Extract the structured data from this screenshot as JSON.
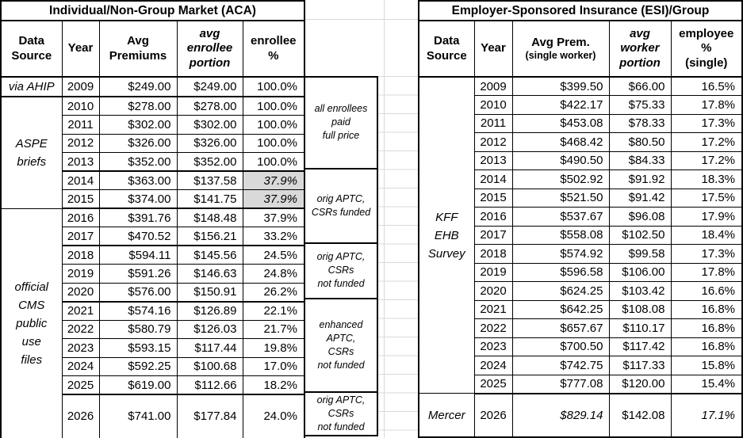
{
  "colors": {
    "background": "#ffffff",
    "text": "#000000",
    "border": "#000000",
    "shaded_cell": "#d9d9d9",
    "gridline": "#d9d9d9"
  },
  "left_table": {
    "title": "Individual/Non-Group Market (ACA)",
    "headers": {
      "data_source": "Data\nSource",
      "year": "Year",
      "premiums": "Avg\nPremiums",
      "portion": "avg\nenrollee\nportion",
      "pct": "enrollee\n%"
    },
    "sources": {
      "ahip": "via AHIP",
      "aspe": "ASPE\nbriefs",
      "cms": "official\nCMS\npublic\nuse\nfiles"
    },
    "rows": [
      {
        "year": "2009",
        "prem": "$249.00",
        "portion": "$249.00",
        "pct": "100.0%",
        "src": "ahip",
        "span": 1,
        "thick_bottom": true
      },
      {
        "year": "2010",
        "prem": "$278.00",
        "portion": "$278.00",
        "pct": "100.0%",
        "src": "aspe",
        "span": 6
      },
      {
        "year": "2011",
        "prem": "$302.00",
        "portion": "$302.00",
        "pct": "100.0%"
      },
      {
        "year": "2012",
        "prem": "$326.00",
        "portion": "$326.00",
        "pct": "100.0%"
      },
      {
        "year": "2013",
        "prem": "$352.00",
        "portion": "$352.00",
        "pct": "100.0%",
        "thick_bottom": true
      },
      {
        "year": "2014",
        "prem": "$363.00",
        "portion": "$137.58",
        "pct": "37.9%",
        "pct_shaded": true,
        "pct_italic": true
      },
      {
        "year": "2015",
        "prem": "$374.00",
        "portion": "$141.75",
        "pct": "37.9%",
        "pct_shaded": true,
        "pct_italic": true,
        "thick_bottom": true
      },
      {
        "year": "2016",
        "prem": "$391.76",
        "portion": "$148.48",
        "pct": "37.9%",
        "src": "cms",
        "span": 11
      },
      {
        "year": "2017",
        "prem": "$470.52",
        "portion": "$156.21",
        "pct": "33.2%",
        "thick_bottom": true
      },
      {
        "year": "2018",
        "prem": "$594.11",
        "portion": "$145.56",
        "pct": "24.5%"
      },
      {
        "year": "2019",
        "prem": "$591.26",
        "portion": "$146.63",
        "pct": "24.8%"
      },
      {
        "year": "2020",
        "prem": "$576.00",
        "portion": "$150.91",
        "pct": "26.2%",
        "thick_bottom": true
      },
      {
        "year": "2021",
        "prem": "$574.16",
        "portion": "$126.89",
        "pct": "22.1%"
      },
      {
        "year": "2022",
        "prem": "$580.79",
        "portion": "$126.03",
        "pct": "21.7%"
      },
      {
        "year": "2023",
        "prem": "$593.15",
        "portion": "$117.44",
        "pct": "19.8%"
      },
      {
        "year": "2024",
        "prem": "$592.25",
        "portion": "$100.68",
        "pct": "17.0%"
      },
      {
        "year": "2025",
        "prem": "$619.00",
        "portion": "$112.66",
        "pct": "18.2%",
        "thick_bottom": true
      },
      {
        "year": "2026",
        "prem": "$741.00",
        "portion": "$177.84",
        "pct": "24.0%",
        "tall": true
      }
    ]
  },
  "notes": [
    {
      "label": "all enrollees\npaid\nfull price"
    },
    {
      "label": "orig APTC,\nCSRs funded"
    },
    {
      "label": "orig APTC,\nCSRs\nnot funded"
    },
    {
      "label": "enhanced\nAPTC,\nCSRs\nnot funded"
    },
    {
      "label": "orig APTC,\nCSRs\nnot funded"
    }
  ],
  "right_table": {
    "title": "Employer-Sponsored Insurance (ESI)/Group",
    "headers": {
      "data_source": "Data\nSource",
      "year": "Year",
      "prem_main": "Avg Prem.",
      "prem_sub": "(single worker)",
      "portion": "avg\nworker\nportion",
      "pct": "employee\n%\n(single)"
    },
    "sources": {
      "kff": "KFF\nEHB\nSurvey",
      "mercer": "Mercer"
    },
    "rows": [
      {
        "year": "2009",
        "prem": "$399.50",
        "portion": "$66.00",
        "pct": "16.5%",
        "src": "kff",
        "span": 17
      },
      {
        "year": "2010",
        "prem": "$422.17",
        "portion": "$75.33",
        "pct": "17.8%"
      },
      {
        "year": "2011",
        "prem": "$453.08",
        "portion": "$78.33",
        "pct": "17.3%"
      },
      {
        "year": "2012",
        "prem": "$468.42",
        "portion": "$80.50",
        "pct": "17.2%"
      },
      {
        "year": "2013",
        "prem": "$490.50",
        "portion": "$84.33",
        "pct": "17.2%"
      },
      {
        "year": "2014",
        "prem": "$502.92",
        "portion": "$91.92",
        "pct": "18.3%"
      },
      {
        "year": "2015",
        "prem": "$521.50",
        "portion": "$91.42",
        "pct": "17.5%"
      },
      {
        "year": "2016",
        "prem": "$537.67",
        "portion": "$96.08",
        "pct": "17.9%"
      },
      {
        "year": "2017",
        "prem": "$558.08",
        "portion": "$102.50",
        "pct": "18.4%"
      },
      {
        "year": "2018",
        "prem": "$574.92",
        "portion": "$99.58",
        "pct": "17.3%"
      },
      {
        "year": "2019",
        "prem": "$596.58",
        "portion": "$106.00",
        "pct": "17.8%"
      },
      {
        "year": "2020",
        "prem": "$624.25",
        "portion": "$103.42",
        "pct": "16.6%"
      },
      {
        "year": "2021",
        "prem": "$642.25",
        "portion": "$108.08",
        "pct": "16.8%"
      },
      {
        "year": "2022",
        "prem": "$657.67",
        "portion": "$110.17",
        "pct": "16.8%"
      },
      {
        "year": "2023",
        "prem": "$700.50",
        "portion": "$117.42",
        "pct": "16.8%"
      },
      {
        "year": "2024",
        "prem": "$742.75",
        "portion": "$117.33",
        "pct": "15.8%"
      },
      {
        "year": "2025",
        "prem": "$777.08",
        "portion": "$120.00",
        "pct": "15.4%",
        "thick_bottom": true
      },
      {
        "year": "2026",
        "prem": "$829.14",
        "portion": "$142.08",
        "pct": "17.1%",
        "src": "mercer",
        "span": 1,
        "prem_italic": true,
        "pct_italic": true,
        "tall": true
      }
    ]
  }
}
